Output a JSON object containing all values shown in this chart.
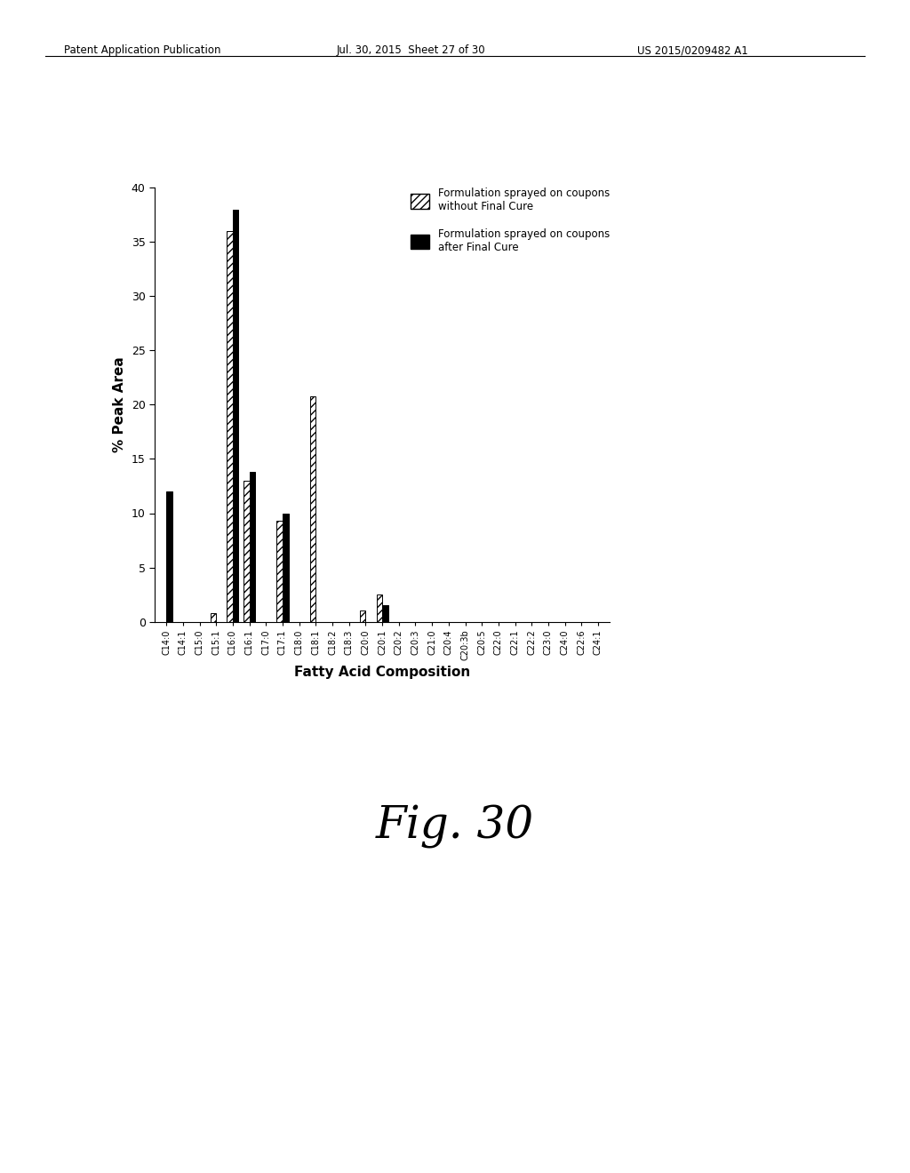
{
  "categories": [
    "C14:0",
    "C14:1",
    "C15:0",
    "C15:1",
    "C16:0",
    "C16:1",
    "C17:0",
    "C17:1",
    "C18:0",
    "C18:1",
    "C18:2",
    "C18:3",
    "C20:0",
    "C20:1",
    "C20:2",
    "C20:3",
    "C21:0",
    "C20:4",
    "C20:3b",
    "C20:5",
    "C22:0",
    "C22:1",
    "C22:2",
    "C23:0",
    "C24:0",
    "C22:6",
    "C24:1"
  ],
  "series1_label": "Formulation sprayed on coupons\nwithout Final Cure",
  "series2_label": "Formulation sprayed on coupons\nafter Final Cure",
  "series1_values": [
    0.0,
    0.0,
    0.0,
    0.8,
    36.0,
    13.0,
    0.0,
    9.3,
    0.0,
    20.8,
    0.0,
    0.0,
    1.0,
    2.5,
    0.0,
    0.0,
    0.0,
    0.0,
    0.0,
    0.0,
    0.0,
    0.0,
    0.0,
    0.0,
    0.0,
    0.0,
    0.0
  ],
  "series2_values": [
    12.0,
    0.0,
    0.0,
    0.0,
    38.0,
    13.8,
    0.0,
    10.0,
    0.0,
    0.0,
    0.0,
    0.0,
    0.0,
    1.5,
    0.0,
    0.0,
    0.0,
    0.0,
    0.0,
    0.0,
    0.0,
    0.0,
    0.0,
    0.0,
    0.0,
    0.0,
    0.0
  ],
  "ylabel": "% Peak Area",
  "xlabel": "Fatty Acid Composition",
  "ylim": [
    0,
    40
  ],
  "yticks": [
    0,
    5,
    10,
    15,
    20,
    25,
    30,
    35,
    40
  ],
  "fig_caption": "Fig. 30",
  "header_left": "Patent Application Publication",
  "header_center": "Jul. 30, 2015  Sheet 27 of 30",
  "header_right": "US 2015/0209482 A1",
  "bar_width": 0.35,
  "background_color": "#ffffff",
  "hatch_pattern": "////",
  "solid_color": "#000000",
  "hatch_color": "#000000",
  "hatch_face_color": "#ffffff"
}
